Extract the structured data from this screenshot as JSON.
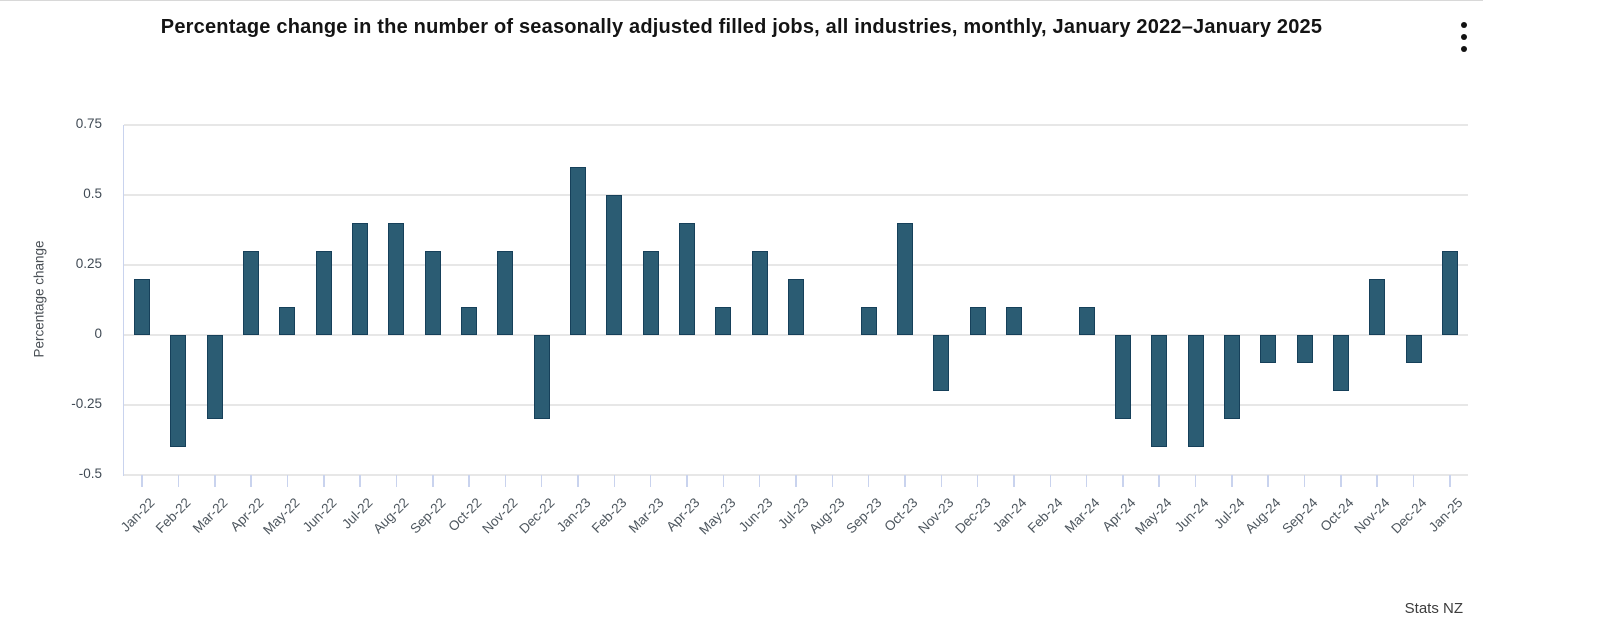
{
  "chart_data": {
    "type": "bar",
    "title": "Percentage change in the number of seasonally adjusted filled jobs, all industries, monthly, January 2022–January 2025",
    "xlabel": "",
    "ylabel": "Percentage change",
    "categories": [
      "Jan-22",
      "Feb-22",
      "Mar-22",
      "Apr-22",
      "May-22",
      "Jun-22",
      "Jul-22",
      "Aug-22",
      "Sep-22",
      "Oct-22",
      "Nov-22",
      "Dec-22",
      "Jan-23",
      "Feb-23",
      "Mar-23",
      "Apr-23",
      "May-23",
      "Jun-23",
      "Jul-23",
      "Aug-23",
      "Sep-23",
      "Oct-23",
      "Nov-23",
      "Dec-23",
      "Jan-24",
      "Feb-24",
      "Mar-24",
      "Apr-24",
      "May-24",
      "Jun-24",
      "Jul-24",
      "Aug-24",
      "Sep-24",
      "Oct-24",
      "Nov-24",
      "Dec-24",
      "Jan-25"
    ],
    "values": [
      0.2,
      -0.4,
      -0.3,
      0.3,
      0.1,
      0.3,
      0.4,
      0.4,
      0.3,
      0.1,
      0.3,
      -0.3,
      0.6,
      0.5,
      0.3,
      0.4,
      0.1,
      0.3,
      0.2,
      0,
      0.1,
      0.4,
      -0.2,
      0.1,
      0.1,
      0,
      0.1,
      -0.3,
      -0.4,
      -0.4,
      -0.3,
      -0.1,
      -0.1,
      -0.2,
      0.2,
      -0.1,
      0.3
    ],
    "ytick_labels": [
      "0.75",
      "0.5",
      "0.25",
      "0",
      "-0.25",
      "-0.5"
    ],
    "ylim": [
      -0.5,
      0.75
    ],
    "grid": true,
    "legend_position": "none",
    "bar_color": "#2b5c73",
    "bar_border_color": "#16405a",
    "grid_color": "#e7e7e7",
    "axis_color": "#c9d3ee"
  },
  "header": {
    "menu_icon": "kebab-menu"
  },
  "footer": {
    "attribution": "Stats NZ"
  }
}
